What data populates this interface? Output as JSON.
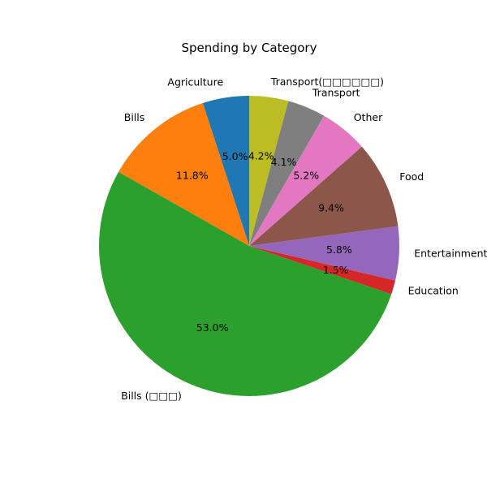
{
  "chart_data": {
    "type": "pie",
    "title": "Spending by Category",
    "start_angle": 90,
    "counterclockwise": true,
    "slices": [
      {
        "label": "Agriculture",
        "value": 5.0,
        "pct_label": "5.0%",
        "color": "#1f77b4"
      },
      {
        "label": "Bills",
        "value": 11.8,
        "pct_label": "11.8%",
        "color": "#ff7f0e"
      },
      {
        "label": "Bills (□□□)",
        "value": 53.0,
        "pct_label": "53.0%",
        "color": "#2ca02c"
      },
      {
        "label": "Education",
        "value": 1.5,
        "pct_label": "1.5%",
        "color": "#d62728"
      },
      {
        "label": "Entertainment",
        "value": 5.8,
        "pct_label": "5.8%",
        "color": "#9467bd"
      },
      {
        "label": "Food",
        "value": 9.4,
        "pct_label": "9.4%",
        "color": "#8c564b"
      },
      {
        "label": "Other",
        "value": 5.2,
        "pct_label": "5.2%",
        "color": "#e377c2"
      },
      {
        "label": "Transport",
        "value": 4.1,
        "pct_label": "4.1%",
        "color": "#7f7f7f"
      },
      {
        "label": "Transport(□□□□□□)",
        "value": 4.2,
        "pct_label": "4.2%",
        "color": "#bcbd22"
      }
    ]
  }
}
